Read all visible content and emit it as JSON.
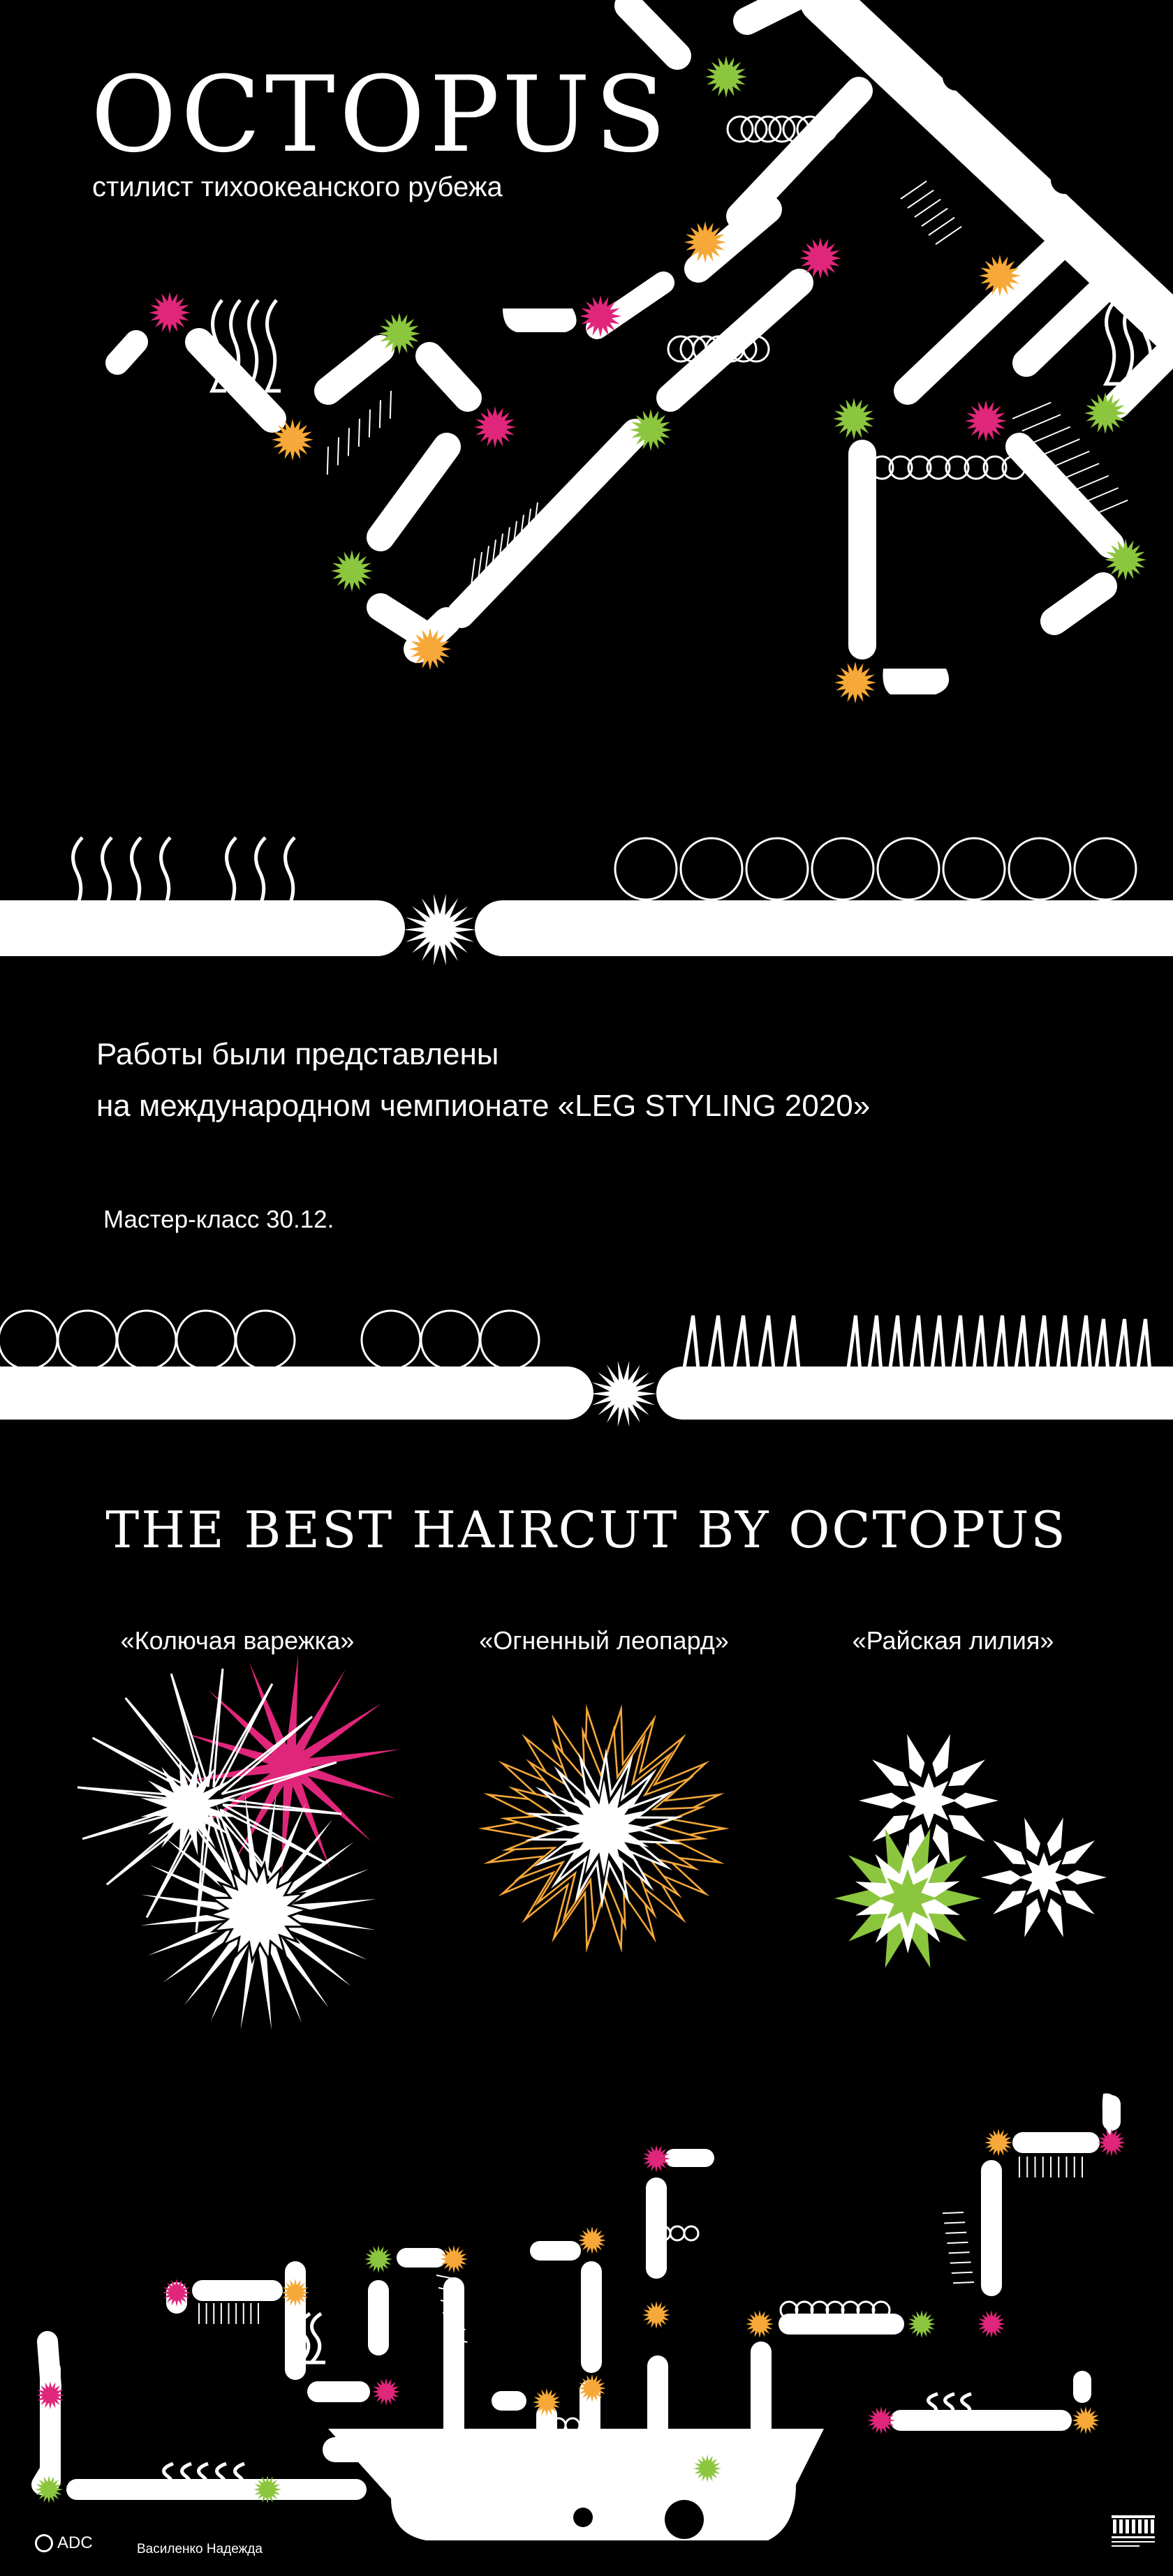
{
  "header": {
    "title": "OCTOPUS",
    "subtitle": "стилист тихоокеанского рубежа"
  },
  "intro": {
    "line1": "Работы были представлены",
    "line2": "на международном чемпионате «LEG STYLING 2020»",
    "masterclass": "Мастер-класс 30.12."
  },
  "best": {
    "heading": "THE BEST HAIRCUT BY OCTOPUS",
    "works": [
      {
        "label": "«Колючая варежка»"
      },
      {
        "label": "«Огненный леопард»"
      },
      {
        "label": "«Райская лилия»"
      }
    ]
  },
  "footer": {
    "logo_text": "ADC",
    "author": "Василенко Надежда"
  },
  "colors": {
    "background": "#000000",
    "white": "#ffffff",
    "pink": "#e0267a",
    "green": "#8cc63f",
    "orange": "#f6a838"
  }
}
